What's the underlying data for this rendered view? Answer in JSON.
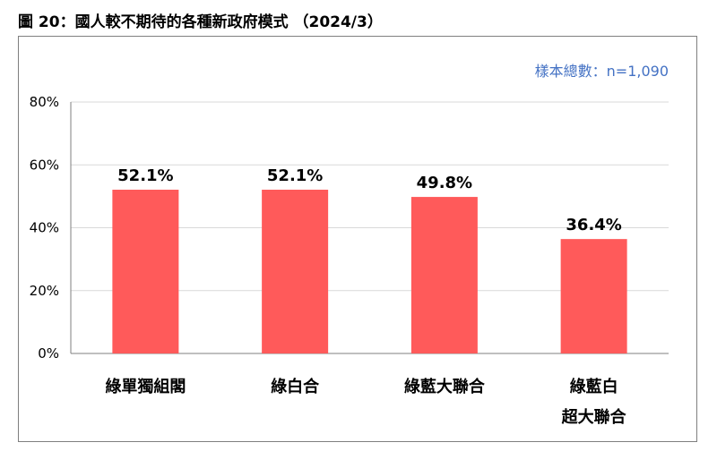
{
  "figure_title": "圖 20：國人較不期待的各種新政府模式 （2024/3）",
  "sample_note": "樣本總數：n=1,090",
  "colors": {
    "bar": "#ff5a5a",
    "note": "#4472c4",
    "grid": "#d9d9d9",
    "axis": "#7f7f7f"
  },
  "chart_data": {
    "type": "bar",
    "title": "",
    "xlabel": "",
    "ylabel": "",
    "categories": [
      [
        "綠單獨組閣"
      ],
      [
        "綠白合"
      ],
      [
        "綠藍大聯合"
      ],
      [
        "綠藍白",
        "超大聯合"
      ]
    ],
    "values": [
      52.1,
      52.1,
      49.8,
      36.4
    ],
    "data_labels": [
      "52.1%",
      "52.1%",
      "49.8%",
      "36.4%"
    ],
    "yticks": [
      0,
      20,
      40,
      60,
      80
    ],
    "ytick_labels": [
      "0%",
      "20%",
      "40%",
      "60%",
      "80%"
    ],
    "ylim": [
      0,
      80
    ],
    "grid": true,
    "legend": "none"
  }
}
